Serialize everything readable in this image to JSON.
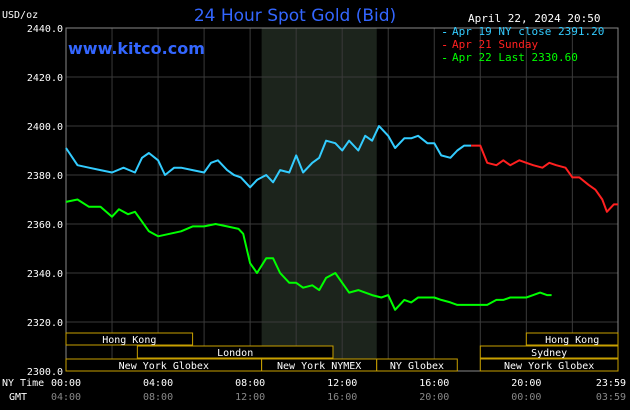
{
  "chart_data": {
    "type": "line",
    "title": "24 Hour Spot Gold (Bid)",
    "ylabel": "USD/oz",
    "ylim": [
      2300.0,
      2440.0
    ],
    "y_ticks": [
      "2300.0",
      "2320.0",
      "2340.0",
      "2360.0",
      "2380.0",
      "2400.0",
      "2420.0",
      "2440.0"
    ],
    "x_hours": [
      0,
      4,
      8,
      12,
      16,
      20,
      23.983
    ],
    "x_ticks_ny": [
      "00:00",
      "04:00",
      "08:00",
      "12:00",
      "16:00",
      "20:00",
      "23:59"
    ],
    "x_ticks_gmt": [
      "04:00",
      "08:00",
      "12:00",
      "16:00",
      "20:00",
      "00:00",
      "03:59"
    ],
    "x_row_label_ny": "NY Time",
    "x_row_label_gmt": "GMT",
    "grid": true,
    "watermark": "www.kitco.com",
    "timestamp": "April 22, 2024 20:50",
    "shaded_hours": [
      8.5,
      13.5
    ],
    "series": [
      {
        "name": "Apr 19 NY close 2391.20",
        "color": "#33ccff",
        "points": [
          [
            0,
            2391
          ],
          [
            0.5,
            2384
          ],
          [
            1,
            2383
          ],
          [
            1.5,
            2382
          ],
          [
            2,
            2381
          ],
          [
            2.5,
            2383
          ],
          [
            3,
            2381
          ],
          [
            3.3,
            2387
          ],
          [
            3.6,
            2389
          ],
          [
            4,
            2386
          ],
          [
            4.3,
            2380
          ],
          [
            4.7,
            2383
          ],
          [
            5,
            2383
          ],
          [
            5.5,
            2382
          ],
          [
            6,
            2381
          ],
          [
            6.3,
            2385
          ],
          [
            6.6,
            2386
          ],
          [
            7,
            2382
          ],
          [
            7.3,
            2380
          ],
          [
            7.6,
            2379
          ],
          [
            8,
            2375
          ],
          [
            8.3,
            2378
          ],
          [
            8.7,
            2380
          ],
          [
            9,
            2377
          ],
          [
            9.3,
            2382
          ],
          [
            9.7,
            2381
          ],
          [
            10,
            2388
          ],
          [
            10.3,
            2381
          ],
          [
            10.7,
            2385
          ],
          [
            11,
            2387
          ],
          [
            11.3,
            2394
          ],
          [
            11.7,
            2393
          ],
          [
            12,
            2390
          ],
          [
            12.3,
            2394
          ],
          [
            12.7,
            2390
          ],
          [
            13,
            2396
          ],
          [
            13.3,
            2394
          ],
          [
            13.6,
            2400
          ],
          [
            14,
            2396
          ],
          [
            14.3,
            2391
          ],
          [
            14.7,
            2395
          ],
          [
            15,
            2395
          ],
          [
            15.3,
            2396
          ],
          [
            15.7,
            2393
          ],
          [
            16,
            2393
          ],
          [
            16.3,
            2388
          ],
          [
            16.7,
            2387
          ],
          [
            17,
            2390
          ],
          [
            17.3,
            2392
          ],
          [
            17.6,
            2392
          ]
        ]
      },
      {
        "name": "Apr 21 Sunday",
        "color": "#ff2020",
        "points": [
          [
            17.6,
            2392
          ],
          [
            18,
            2392
          ],
          [
            18.3,
            2385
          ],
          [
            18.7,
            2384
          ],
          [
            19,
            2386
          ],
          [
            19.3,
            2384
          ],
          [
            19.7,
            2386
          ],
          [
            20,
            2385
          ],
          [
            20.3,
            2384
          ],
          [
            20.7,
            2383
          ],
          [
            21,
            2385
          ],
          [
            21.3,
            2384
          ],
          [
            21.7,
            2383
          ],
          [
            22,
            2379
          ],
          [
            22.3,
            2379
          ],
          [
            22.7,
            2376
          ],
          [
            23,
            2374
          ],
          [
            23.3,
            2370
          ],
          [
            23.5,
            2365
          ],
          [
            23.8,
            2368
          ],
          [
            23.983,
            2368
          ]
        ]
      },
      {
        "name": "Apr 22 Last 2330.60",
        "color": "#00ff00",
        "points": [
          [
            0,
            2369
          ],
          [
            0.5,
            2370
          ],
          [
            1,
            2367
          ],
          [
            1.5,
            2367
          ],
          [
            2,
            2363
          ],
          [
            2.3,
            2366
          ],
          [
            2.7,
            2364
          ],
          [
            3,
            2365
          ],
          [
            3.3,
            2361
          ],
          [
            3.6,
            2357
          ],
          [
            4,
            2355
          ],
          [
            4.5,
            2356
          ],
          [
            5,
            2357
          ],
          [
            5.5,
            2359
          ],
          [
            6,
            2359
          ],
          [
            6.5,
            2360
          ],
          [
            7,
            2359
          ],
          [
            7.5,
            2358
          ],
          [
            7.7,
            2356
          ],
          [
            8,
            2344
          ],
          [
            8.3,
            2340
          ],
          [
            8.7,
            2346
          ],
          [
            9,
            2346
          ],
          [
            9.3,
            2340
          ],
          [
            9.7,
            2336
          ],
          [
            10,
            2336
          ],
          [
            10.3,
            2334
          ],
          [
            10.7,
            2335
          ],
          [
            11,
            2333
          ],
          [
            11.3,
            2338
          ],
          [
            11.7,
            2340
          ],
          [
            12,
            2336
          ],
          [
            12.3,
            2332
          ],
          [
            12.7,
            2333
          ],
          [
            13,
            2332
          ],
          [
            13.3,
            2331
          ],
          [
            13.7,
            2330
          ],
          [
            14,
            2331
          ],
          [
            14.3,
            2325
          ],
          [
            14.7,
            2329
          ],
          [
            15,
            2328
          ],
          [
            15.3,
            2330
          ],
          [
            15.7,
            2330
          ],
          [
            16,
            2330
          ],
          [
            16.3,
            2329
          ],
          [
            16.7,
            2328
          ],
          [
            17,
            2327
          ],
          [
            17.3,
            2327
          ],
          [
            17.6,
            2327
          ],
          [
            18,
            2327
          ],
          [
            18.3,
            2327
          ],
          [
            18.7,
            2329
          ],
          [
            19,
            2329
          ],
          [
            19.3,
            2330
          ],
          [
            19.7,
            2330
          ],
          [
            20,
            2330
          ],
          [
            20.3,
            2331
          ],
          [
            20.6,
            2332
          ],
          [
            20.9,
            2331
          ],
          [
            21.1,
            2331
          ]
        ]
      }
    ]
  },
  "sessions": [
    {
      "label": "Hong Kong",
      "row": 0,
      "start": 0,
      "end": 5.5
    },
    {
      "label": "London",
      "row": 1,
      "start": 3.1,
      "end": 11.6
    },
    {
      "label": "New York Globex",
      "row": 2,
      "start": 0,
      "end": 8.5
    },
    {
      "label": "New York NYMEX",
      "row": 2,
      "start": 8.5,
      "end": 13.5
    },
    {
      "label": "NY Globex",
      "row": 2,
      "start": 13.5,
      "end": 17.0
    },
    {
      "label": "Hong Kong",
      "row": 0,
      "start": 20.0,
      "end": 23.983
    },
    {
      "label": "Sydney",
      "row": 1,
      "start": 18.0,
      "end": 23.983
    },
    {
      "label": "New York Globex",
      "row": 2,
      "start": 18.0,
      "end": 23.983
    }
  ]
}
